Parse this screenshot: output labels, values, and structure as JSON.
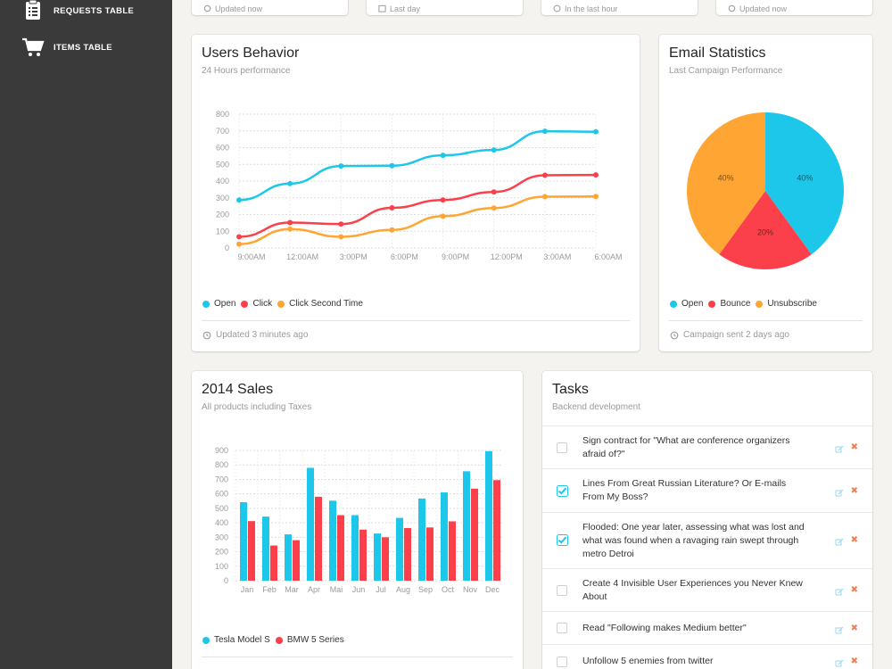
{
  "sidebar": {
    "items": [
      {
        "label": "REQUESTS TABLE",
        "icon": "clipboard-icon"
      },
      {
        "label": "ITEMS TABLE",
        "icon": "cart-icon"
      }
    ]
  },
  "stat_cards": [
    {
      "footer": "Updated now",
      "icon": "refresh-icon"
    },
    {
      "footer": "Last day",
      "icon": "calendar-icon"
    },
    {
      "footer": "In the last hour",
      "icon": "clock-icon"
    },
    {
      "footer": "Updated now",
      "icon": "refresh-icon"
    }
  ],
  "users_behavior": {
    "title": "Users Behavior",
    "subtitle": "24 Hours performance",
    "footer": "Updated 3 minutes ago",
    "legend": [
      {
        "label": "Open",
        "color": "#1dc7ea"
      },
      {
        "label": "Click",
        "color": "#fb404b"
      },
      {
        "label": "Click Second Time",
        "color": "#ffa534"
      }
    ]
  },
  "email_stats": {
    "title": "Email Statistics",
    "subtitle": "Last Campaign Performance",
    "footer": "Campaign sent 2 days ago",
    "legend": [
      {
        "label": "Open",
        "color": "#1dc7ea"
      },
      {
        "label": "Bounce",
        "color": "#fb404b"
      },
      {
        "label": "Unsubscribe",
        "color": "#ffa534"
      }
    ]
  },
  "sales": {
    "title": "2014 Sales",
    "subtitle": "All products including Taxes",
    "legend": [
      {
        "label": "Tesla Model S",
        "color": "#1dc7ea"
      },
      {
        "label": "BMW 5 Series",
        "color": "#fb404b"
      }
    ]
  },
  "tasks": {
    "title": "Tasks",
    "subtitle": "Backend development",
    "items": [
      {
        "text": "Sign contract for \"What are conference organizers afraid of?\"",
        "checked": false
      },
      {
        "text": "Lines From Great Russian Literature? Or E-mails From My Boss?",
        "checked": true
      },
      {
        "text": "Flooded: One year later, assessing what was lost and what was found when a ravaging rain swept through metro Detroi",
        "checked": true
      },
      {
        "text": "Create 4 Invisible User Experiences you Never Knew About",
        "checked": false
      },
      {
        "text": "Read \"Following makes Medium better\"",
        "checked": false
      },
      {
        "text": "Unfollow 5 enemies from twitter",
        "checked": false
      }
    ]
  },
  "chart_data": [
    {
      "type": "line",
      "categories": [
        "9:00AM",
        "12:00AM",
        "3:00PM",
        "6:00PM",
        "9:00PM",
        "12:00PM",
        "3:00AM",
        "6:00AM"
      ],
      "ylim": [
        0,
        800
      ],
      "yticks": [
        "800",
        "700",
        "600",
        "500",
        "400",
        "300",
        "200",
        "100",
        "0"
      ],
      "series": [
        {
          "name": "Open",
          "color": "#1dc7ea",
          "values": [
            287,
            385,
            490,
            492,
            554,
            586,
            698,
            695
          ]
        },
        {
          "name": "Click",
          "color": "#fb404b",
          "values": [
            67,
            152,
            143,
            240,
            287,
            335,
            435,
            437
          ]
        },
        {
          "name": "Click Second Time",
          "color": "#ffa534",
          "values": [
            23,
            113,
            67,
            108,
            190,
            239,
            307,
            308
          ]
        }
      ]
    },
    {
      "type": "pie",
      "slices": [
        {
          "name": "Open",
          "label": "40%",
          "value": 40,
          "color": "#1dc7ea"
        },
        {
          "name": "Bounce",
          "label": "20%",
          "value": 20,
          "color": "#fb404b"
        },
        {
          "name": "Unsubscribe",
          "label": "40%",
          "value": 40,
          "color": "#ffa534"
        }
      ]
    },
    {
      "type": "bar",
      "categories": [
        "Jan",
        "Feb",
        "Mar",
        "Apr",
        "Mai",
        "Jun",
        "Jul",
        "Aug",
        "Sep",
        "Oct",
        "Nov",
        "Dec"
      ],
      "ylim": [
        0,
        900
      ],
      "yticks": [
        "900",
        "800",
        "700",
        "600",
        "500",
        "400",
        "300",
        "200",
        "100",
        "0"
      ],
      "series": [
        {
          "name": "Tesla Model S",
          "color": "#1dc7ea",
          "values": [
            542,
            443,
            320,
            780,
            553,
            453,
            326,
            434,
            568,
            610,
            756,
            895
          ]
        },
        {
          "name": "BMW 5 Series",
          "color": "#fb404b",
          "values": [
            412,
            243,
            280,
            580,
            453,
            353,
            300,
            364,
            368,
            410,
            636,
            695
          ]
        }
      ]
    }
  ]
}
